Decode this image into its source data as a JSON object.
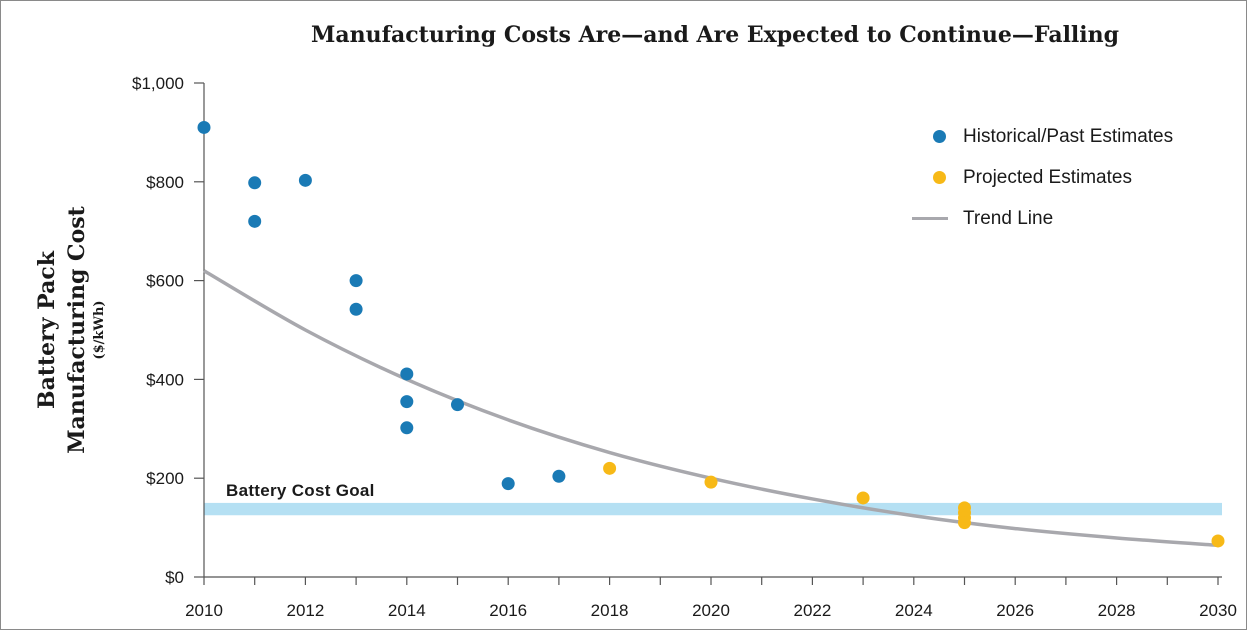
{
  "chart_data": {
    "type": "scatter",
    "title": "Manufacturing Costs Are—and Are Expected to Continue—Falling",
    "ylabel_line1": "Battery Pack",
    "ylabel_line2": "Manufacturing Cost",
    "ylabel_unit": "($/kWh)",
    "xlim": [
      2010,
      2030
    ],
    "ylim": [
      0,
      1000
    ],
    "x_ticks": [
      "2010",
      "2012",
      "2014",
      "2016",
      "2018",
      "2020",
      "2022",
      "2024",
      "2026",
      "2028",
      "2030"
    ],
    "y_ticks": [
      "$0",
      "$200",
      "$400",
      "$600",
      "$800",
      "$1,000"
    ],
    "legend_placement": "top-right",
    "series": [
      {
        "name": "Historical/Past Estimates",
        "color": "#1a7ab5",
        "points": [
          [
            2010,
            910
          ],
          [
            2011,
            798
          ],
          [
            2011,
            720
          ],
          [
            2012,
            803
          ],
          [
            2013,
            600
          ],
          [
            2013,
            542
          ],
          [
            2014,
            411
          ],
          [
            2014,
            355
          ],
          [
            2014,
            302
          ],
          [
            2015,
            349
          ],
          [
            2016,
            189
          ],
          [
            2017,
            204
          ]
        ]
      },
      {
        "name": "Projected Estimates",
        "color": "#f7b917",
        "points": [
          [
            2018,
            220
          ],
          [
            2020,
            192
          ],
          [
            2023,
            160
          ],
          [
            2025,
            140
          ],
          [
            2025,
            130
          ],
          [
            2025,
            120
          ],
          [
            2025,
            110
          ],
          [
            2030,
            73
          ]
        ]
      }
    ],
    "trend_line": {
      "name": "Trend Line",
      "color": "#a8a8ad",
      "points": [
        [
          2010,
          620
        ],
        [
          2012,
          500
        ],
        [
          2014,
          400
        ],
        [
          2016,
          318
        ],
        [
          2018,
          252
        ],
        [
          2020,
          200
        ],
        [
          2022,
          158
        ],
        [
          2024,
          124
        ],
        [
          2026,
          98
        ],
        [
          2028,
          79
        ],
        [
          2030,
          64
        ]
      ]
    },
    "goal_band": {
      "label": "Battery Cost Goal",
      "range": [
        125,
        150
      ],
      "color": "#b5e0f3"
    }
  }
}
